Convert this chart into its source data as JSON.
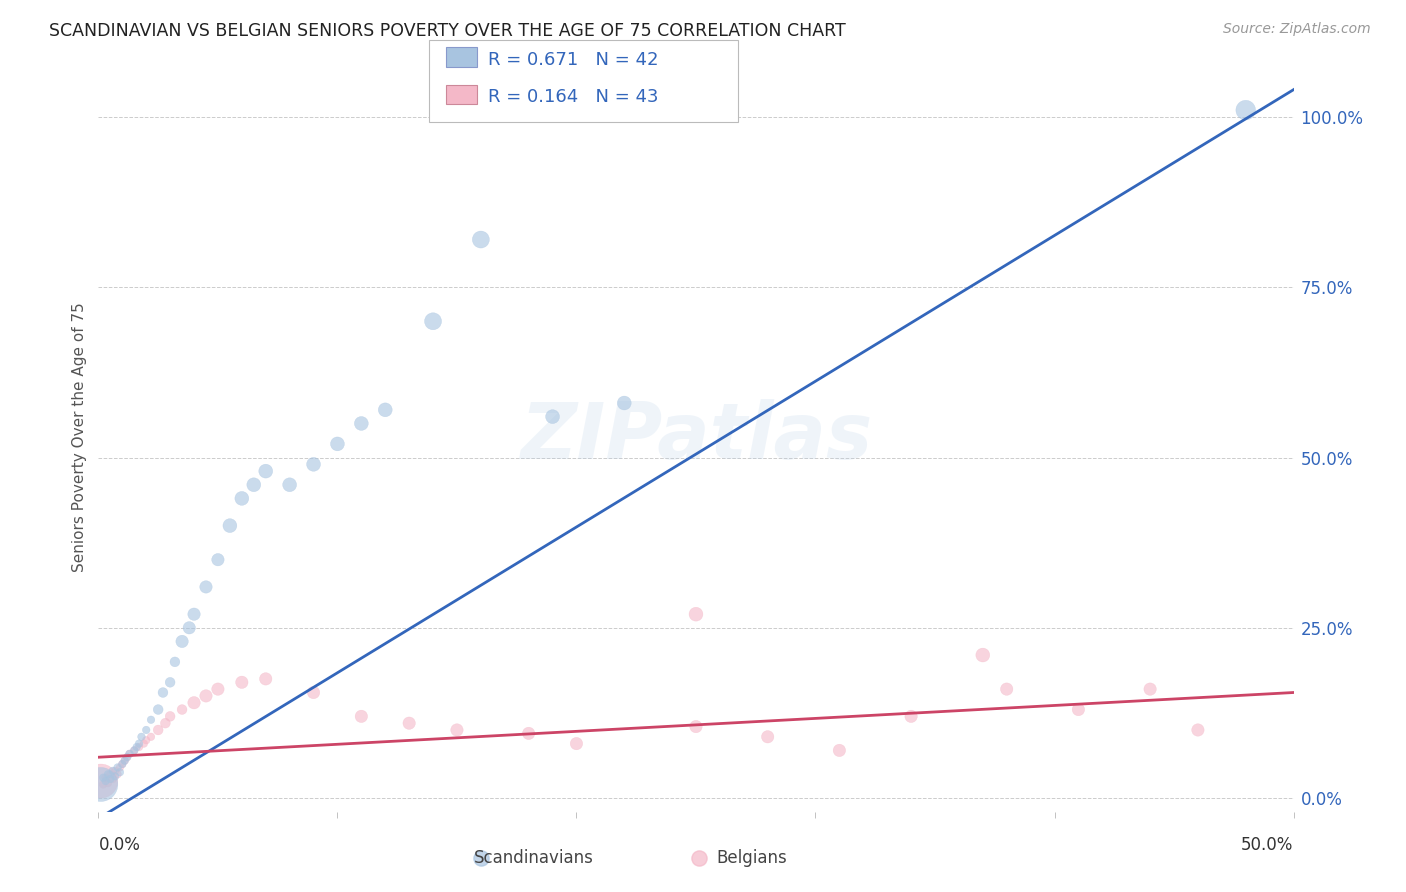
{
  "title": "SCANDINAVIAN VS BELGIAN SENIORS POVERTY OVER THE AGE OF 75 CORRELATION CHART",
  "source": "Source: ZipAtlas.com",
  "ylabel": "Seniors Poverty Over the Age of 75",
  "xlim": [
    0.0,
    0.5
  ],
  "ylim": [
    -0.02,
    1.08
  ],
  "yticks": [
    0.0,
    0.25,
    0.5,
    0.75,
    1.0
  ],
  "ytick_labels": [
    "0.0%",
    "25.0%",
    "50.0%",
    "75.0%",
    "100.0%"
  ],
  "xtick_labels": [
    "0.0%",
    "50.0%"
  ],
  "background_color": "#ffffff",
  "watermark": "ZIPatlas",
  "blue_fill": "#a8c4e0",
  "pink_fill": "#f4b8c8",
  "blue_line_color": "#3366bb",
  "pink_line_color": "#cc4466",
  "legend_text_color": "#3366bb",
  "legend_blue_R": "0.671",
  "legend_blue_N": "42",
  "legend_pink_R": "0.164",
  "legend_pink_N": "43",
  "sc_x": [
    0.002,
    0.003,
    0.004,
    0.005,
    0.006,
    0.007,
    0.008,
    0.009,
    0.01,
    0.011,
    0.012,
    0.013,
    0.015,
    0.016,
    0.017,
    0.018,
    0.02,
    0.022,
    0.025,
    0.027,
    0.03,
    0.032,
    0.035,
    0.038,
    0.04,
    0.045,
    0.05,
    0.055,
    0.06,
    0.065,
    0.07,
    0.08,
    0.09,
    0.1,
    0.11,
    0.12,
    0.14,
    0.16,
    0.19,
    0.22,
    0.48,
    0.001
  ],
  "sc_y": [
    0.03,
    0.025,
    0.035,
    0.028,
    0.04,
    0.032,
    0.045,
    0.038,
    0.05,
    0.055,
    0.06,
    0.065,
    0.07,
    0.075,
    0.08,
    0.09,
    0.1,
    0.115,
    0.13,
    0.155,
    0.17,
    0.2,
    0.23,
    0.25,
    0.27,
    0.31,
    0.35,
    0.4,
    0.44,
    0.46,
    0.48,
    0.46,
    0.49,
    0.52,
    0.55,
    0.57,
    0.7,
    0.82,
    0.56,
    0.58,
    1.01,
    0.02
  ],
  "sc_sizes": [
    30,
    30,
    30,
    30,
    30,
    30,
    30,
    30,
    30,
    30,
    30,
    30,
    30,
    30,
    30,
    30,
    30,
    30,
    50,
    50,
    50,
    50,
    80,
    80,
    80,
    80,
    80,
    100,
    100,
    100,
    100,
    100,
    100,
    100,
    100,
    100,
    150,
    150,
    100,
    100,
    200,
    600
  ],
  "be_x": [
    0.001,
    0.002,
    0.003,
    0.004,
    0.005,
    0.006,
    0.007,
    0.008,
    0.009,
    0.01,
    0.011,
    0.012,
    0.013,
    0.015,
    0.017,
    0.019,
    0.02,
    0.022,
    0.025,
    0.028,
    0.03,
    0.035,
    0.04,
    0.045,
    0.05,
    0.06,
    0.07,
    0.09,
    0.11,
    0.13,
    0.15,
    0.18,
    0.2,
    0.25,
    0.28,
    0.31,
    0.34,
    0.38,
    0.41,
    0.44,
    0.46,
    0.25,
    0.37
  ],
  "be_y": [
    0.025,
    0.02,
    0.03,
    0.022,
    0.035,
    0.028,
    0.04,
    0.035,
    0.045,
    0.05,
    0.055,
    0.06,
    0.065,
    0.07,
    0.075,
    0.08,
    0.085,
    0.09,
    0.1,
    0.11,
    0.12,
    0.13,
    0.14,
    0.15,
    0.16,
    0.17,
    0.175,
    0.155,
    0.12,
    0.11,
    0.1,
    0.095,
    0.08,
    0.105,
    0.09,
    0.07,
    0.12,
    0.16,
    0.13,
    0.16,
    0.1,
    0.27,
    0.21
  ],
  "be_sizes": [
    600,
    30,
    30,
    30,
    30,
    30,
    30,
    30,
    30,
    30,
    30,
    30,
    30,
    30,
    30,
    30,
    30,
    30,
    50,
    50,
    50,
    50,
    80,
    80,
    80,
    80,
    80,
    80,
    80,
    80,
    80,
    80,
    80,
    80,
    80,
    80,
    80,
    80,
    80,
    80,
    80,
    100,
    100
  ]
}
